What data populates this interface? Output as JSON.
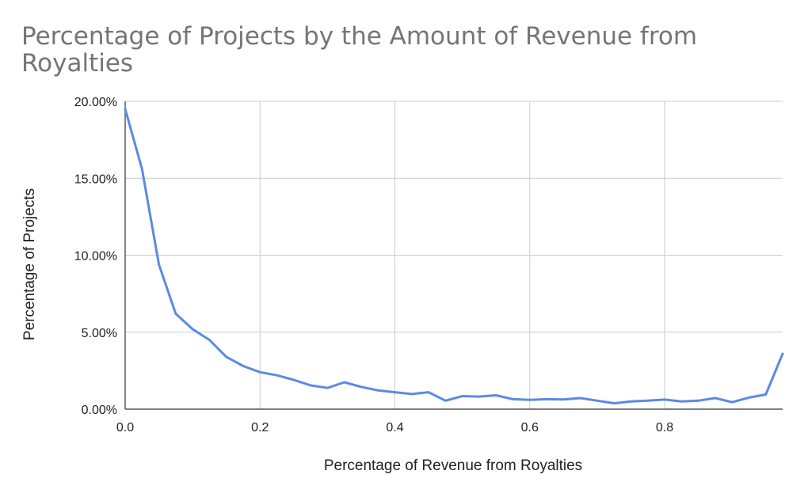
{
  "chart_data": {
    "type": "line",
    "title_lines": [
      "Percentage of Projects by the Amount of Revenue from",
      "Royalties"
    ],
    "xlabel": "Percentage of Revenue from Royalties",
    "ylabel": "Percentage of Projects",
    "xlim": [
      0,
      0.975
    ],
    "ylim": [
      0,
      0.2
    ],
    "x_ticks": [
      {
        "value": 0.0,
        "label": "0.0"
      },
      {
        "value": 0.2,
        "label": "0.2"
      },
      {
        "value": 0.4,
        "label": "0.4"
      },
      {
        "value": 0.6,
        "label": "0.6"
      },
      {
        "value": 0.8,
        "label": "0.8"
      }
    ],
    "y_ticks": [
      {
        "value": 0.0,
        "label": "0.00%"
      },
      {
        "value": 0.05,
        "label": "5.00%"
      },
      {
        "value": 0.1,
        "label": "10.00%"
      },
      {
        "value": 0.15,
        "label": "15.00%"
      },
      {
        "value": 0.2,
        "label": "20.00%"
      }
    ],
    "grid": true,
    "legend": "none",
    "series": [
      {
        "color": "#5b8ae4",
        "x": [
          0,
          0.025,
          0.05,
          0.075,
          0.1,
          0.125,
          0.15,
          0.175,
          0.2,
          0.225,
          0.25,
          0.275,
          0.3,
          0.325,
          0.35,
          0.375,
          0.4,
          0.425,
          0.45,
          0.475,
          0.5,
          0.525,
          0.55,
          0.575,
          0.6,
          0.625,
          0.65,
          0.675,
          0.7,
          0.725,
          0.75,
          0.775,
          0.8,
          0.825,
          0.85,
          0.875,
          0.9,
          0.925,
          0.95,
          0.975
        ],
        "y": [
          0.195,
          0.156,
          0.094,
          0.062,
          0.052,
          0.045,
          0.034,
          0.028,
          0.024,
          0.022,
          0.019,
          0.0155,
          0.0138,
          0.0175,
          0.0145,
          0.0122,
          0.011,
          0.0098,
          0.011,
          0.0055,
          0.0085,
          0.0082,
          0.009,
          0.0065,
          0.006,
          0.0065,
          0.0063,
          0.0072,
          0.0055,
          0.0038,
          0.005,
          0.0055,
          0.0062,
          0.005,
          0.0055,
          0.0072,
          0.0045,
          0.0075,
          0.0095,
          0.036
        ]
      }
    ]
  }
}
